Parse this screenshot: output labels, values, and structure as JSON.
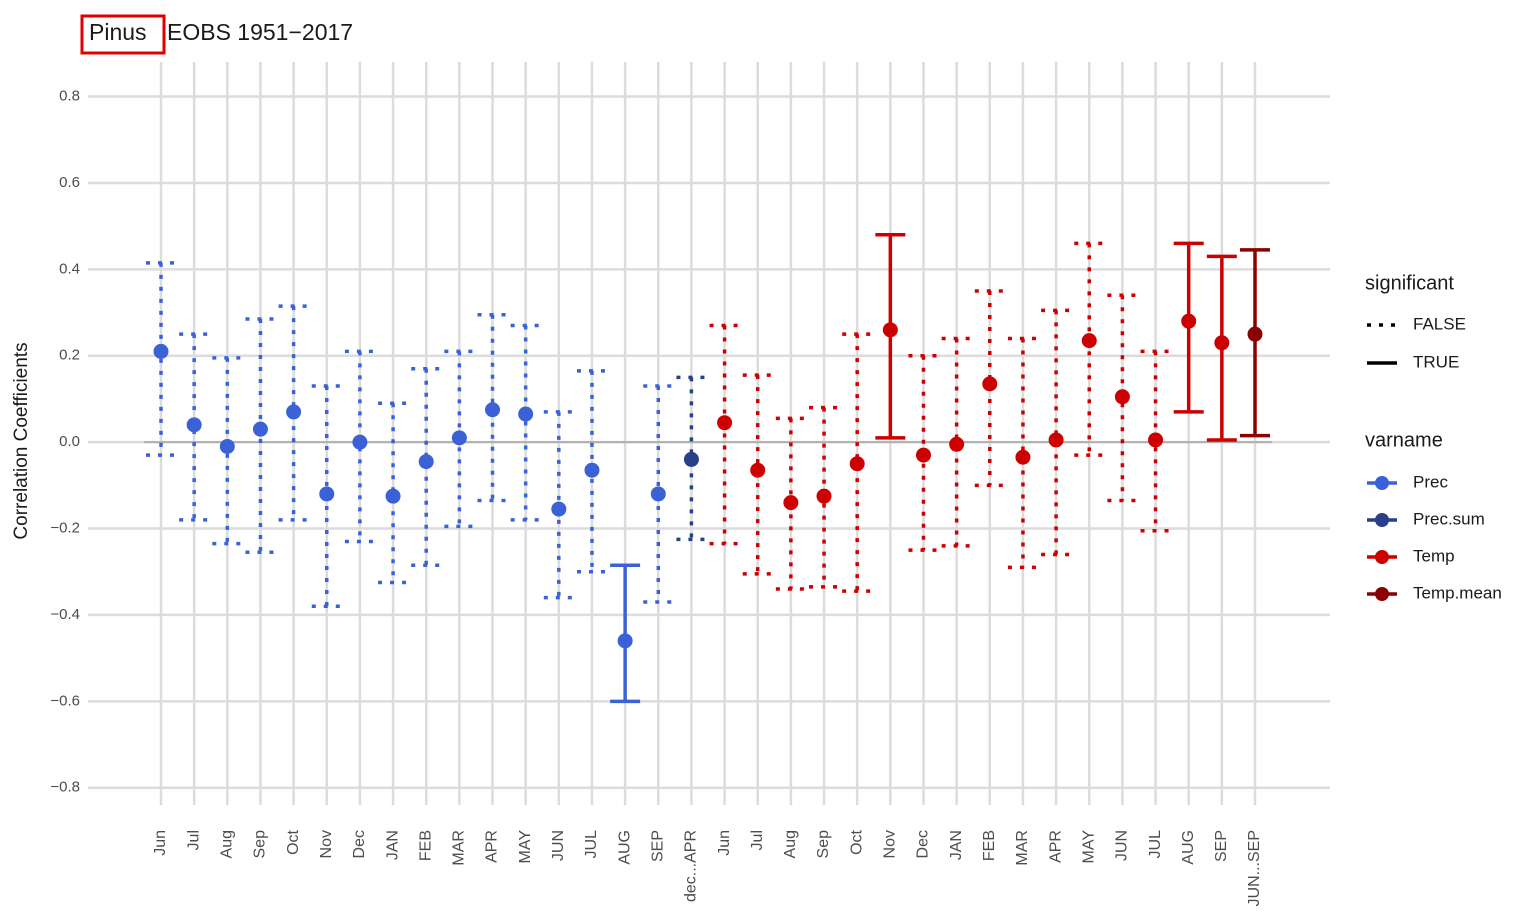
{
  "chart_data": {
    "type": "errorbar",
    "title_highlight": "Pinus",
    "title": "EOBS 1951−2017",
    "y_label": "Correlation Coefficients",
    "categories": [
      "Jun",
      "Jul",
      "Aug",
      "Sep",
      "Oct",
      "Nov",
      "Dec",
      "JAN",
      "FEB",
      "MAR",
      "APR",
      "MAY",
      "JUN",
      "JUL",
      "AUG",
      "SEP",
      "dec...APR",
      "Jun",
      "Jul",
      "Aug",
      "Sep",
      "Oct",
      "Nov",
      "Dec",
      "JAN",
      "FEB",
      "MAR",
      "APR",
      "MAY",
      "JUN",
      "JUL",
      "AUG",
      "SEP",
      "JUN...SEP"
    ],
    "ylim": [
      -0.84,
      0.88
    ],
    "yticks": [
      {
        "value": -0.8,
        "label": "−0.8"
      },
      {
        "value": -0.6,
        "label": "−0.6"
      },
      {
        "value": -0.4,
        "label": "−0.4"
      },
      {
        "value": -0.2,
        "label": "−0.2"
      },
      {
        "value": 0,
        "label": "0.0"
      },
      0.2,
      0.4,
      0.6,
      0.8
    ],
    "hline": 0,
    "grid": true,
    "legend_significant": {
      "title": "significant",
      "labels": [
        "FALSE",
        "TRUE"
      ]
    },
    "legend_varname_title": "varname",
    "series": [
      {
        "name": "Prec",
        "color": "#3a62d6",
        "values": [
          0.21,
          0.04,
          -0.01,
          0.03,
          0.07,
          -0.12,
          0.0,
          -0.125,
          -0.045,
          0.01,
          0.075,
          0.065,
          -0.155,
          -0.065,
          -0.46,
          -0.12,
          null,
          null,
          null,
          null,
          null,
          null,
          null,
          null,
          null,
          null,
          null,
          null,
          null,
          null,
          null,
          null,
          null,
          null
        ],
        "lower": [
          -0.03,
          -0.18,
          -0.235,
          -0.255,
          -0.18,
          -0.38,
          -0.23,
          -0.325,
          -0.285,
          -0.195,
          -0.135,
          -0.18,
          -0.36,
          -0.3,
          -0.6,
          -0.37,
          null,
          null,
          null,
          null,
          null,
          null,
          null,
          null,
          null,
          null,
          null,
          null,
          null,
          null,
          null,
          null,
          null,
          null
        ],
        "upper": [
          0.415,
          0.25,
          0.195,
          0.285,
          0.315,
          0.13,
          0.21,
          0.09,
          0.17,
          0.21,
          0.295,
          0.27,
          0.07,
          0.165,
          -0.285,
          0.13,
          null,
          null,
          null,
          null,
          null,
          null,
          null,
          null,
          null,
          null,
          null,
          null,
          null,
          null,
          null,
          null,
          null,
          null
        ],
        "significant": [
          false,
          false,
          false,
          false,
          false,
          false,
          false,
          false,
          false,
          false,
          false,
          false,
          false,
          false,
          true,
          false,
          null,
          null,
          null,
          null,
          null,
          null,
          null,
          null,
          null,
          null,
          null,
          null,
          null,
          null,
          null,
          null,
          null,
          null
        ]
      },
      {
        "name": "Prec.sum",
        "color": "#283f8a",
        "values": [
          null,
          null,
          null,
          null,
          null,
          null,
          null,
          null,
          null,
          null,
          null,
          null,
          null,
          null,
          null,
          null,
          -0.04,
          null,
          null,
          null,
          null,
          null,
          null,
          null,
          null,
          null,
          null,
          null,
          null,
          null,
          null,
          null,
          null,
          null
        ],
        "lower": [
          null,
          null,
          null,
          null,
          null,
          null,
          null,
          null,
          null,
          null,
          null,
          null,
          null,
          null,
          null,
          null,
          -0.225,
          null,
          null,
          null,
          null,
          null,
          null,
          null,
          null,
          null,
          null,
          null,
          null,
          null,
          null,
          null,
          null,
          null
        ],
        "upper": [
          null,
          null,
          null,
          null,
          null,
          null,
          null,
          null,
          null,
          null,
          null,
          null,
          null,
          null,
          null,
          null,
          0.15,
          null,
          null,
          null,
          null,
          null,
          null,
          null,
          null,
          null,
          null,
          null,
          null,
          null,
          null,
          null,
          null,
          null
        ],
        "significant": [
          null,
          null,
          null,
          null,
          null,
          null,
          null,
          null,
          null,
          null,
          null,
          null,
          null,
          null,
          null,
          null,
          false,
          null,
          null,
          null,
          null,
          null,
          null,
          null,
          null,
          null,
          null,
          null,
          null,
          null,
          null,
          null,
          null,
          null
        ]
      },
      {
        "name": "Temp",
        "color": "#cc0000",
        "values": [
          null,
          null,
          null,
          null,
          null,
          null,
          null,
          null,
          null,
          null,
          null,
          null,
          null,
          null,
          null,
          null,
          null,
          0.045,
          -0.065,
          -0.14,
          -0.125,
          -0.05,
          0.26,
          -0.03,
          -0.005,
          0.135,
          -0.035,
          0.005,
          0.235,
          0.105,
          0.005,
          0.28,
          0.23,
          null
        ],
        "lower": [
          null,
          null,
          null,
          null,
          null,
          null,
          null,
          null,
          null,
          null,
          null,
          null,
          null,
          null,
          null,
          null,
          null,
          -0.235,
          -0.305,
          -0.34,
          -0.335,
          -0.345,
          0.01,
          -0.25,
          -0.24,
          -0.1,
          -0.29,
          -0.26,
          -0.03,
          -0.135,
          -0.205,
          0.07,
          0.005,
          null
        ],
        "upper": [
          null,
          null,
          null,
          null,
          null,
          null,
          null,
          null,
          null,
          null,
          null,
          null,
          null,
          null,
          null,
          null,
          null,
          0.27,
          0.155,
          0.055,
          0.08,
          0.25,
          0.48,
          0.2,
          0.24,
          0.35,
          0.24,
          0.305,
          0.46,
          0.34,
          0.21,
          0.46,
          0.43,
          null
        ],
        "significant": [
          null,
          null,
          null,
          null,
          null,
          null,
          null,
          null,
          null,
          null,
          null,
          null,
          null,
          null,
          null,
          null,
          null,
          false,
          false,
          false,
          false,
          false,
          true,
          false,
          false,
          false,
          false,
          false,
          false,
          false,
          false,
          true,
          true,
          null
        ]
      },
      {
        "name": "Temp.mean",
        "color": "#8b0000",
        "values": [
          null,
          null,
          null,
          null,
          null,
          null,
          null,
          null,
          null,
          null,
          null,
          null,
          null,
          null,
          null,
          null,
          null,
          null,
          null,
          null,
          null,
          null,
          null,
          null,
          null,
          null,
          null,
          null,
          null,
          null,
          null,
          null,
          null,
          0.25
        ],
        "lower": [
          null,
          null,
          null,
          null,
          null,
          null,
          null,
          null,
          null,
          null,
          null,
          null,
          null,
          null,
          null,
          null,
          null,
          null,
          null,
          null,
          null,
          null,
          null,
          null,
          null,
          null,
          null,
          null,
          null,
          null,
          null,
          null,
          null,
          0.015
        ],
        "upper": [
          null,
          null,
          null,
          null,
          null,
          null,
          null,
          null,
          null,
          null,
          null,
          null,
          null,
          null,
          null,
          null,
          null,
          null,
          null,
          null,
          null,
          null,
          null,
          null,
          null,
          null,
          null,
          null,
          null,
          null,
          null,
          null,
          null,
          0.445
        ],
        "significant": [
          null,
          null,
          null,
          null,
          null,
          null,
          null,
          null,
          null,
          null,
          null,
          null,
          null,
          null,
          null,
          null,
          null,
          null,
          null,
          null,
          null,
          null,
          null,
          null,
          null,
          null,
          null,
          null,
          null,
          null,
          null,
          null,
          null,
          true
        ]
      }
    ]
  }
}
